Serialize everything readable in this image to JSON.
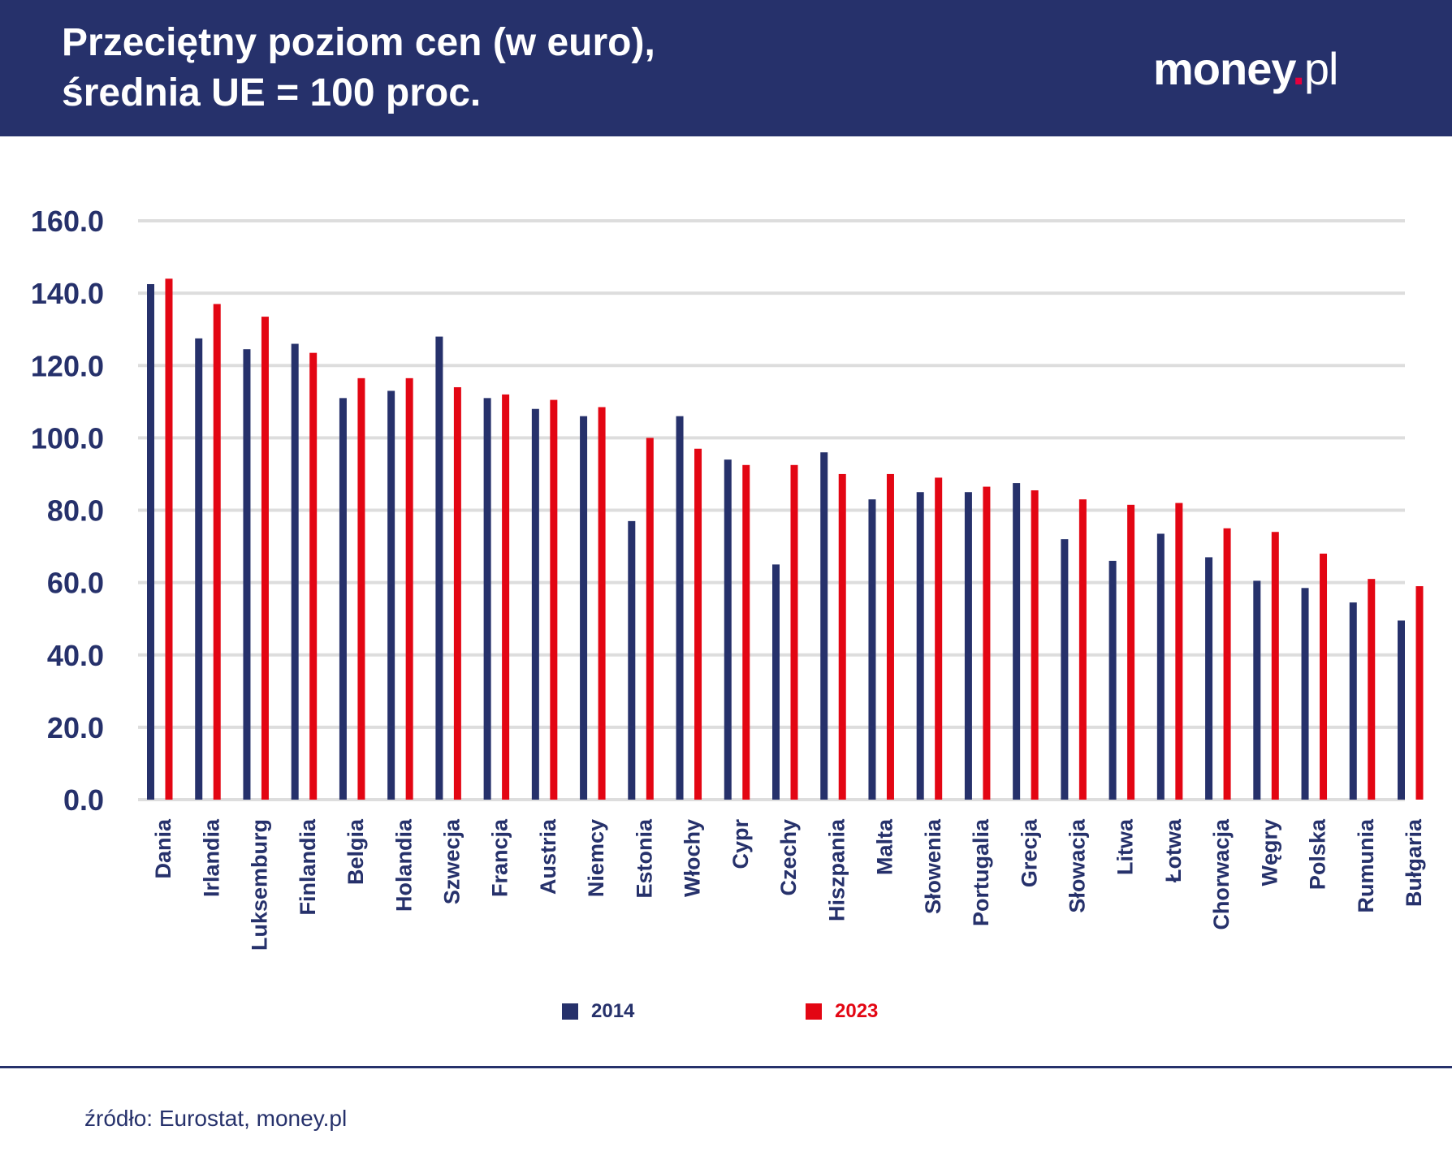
{
  "header": {
    "title_line1": "Przeciętny poziom cen (w euro),",
    "title_line2": "średnia UE = 100 proc.",
    "logo_main": "money",
    "logo_dot": ".",
    "logo_suffix": "pl"
  },
  "colors": {
    "header_bg": "#26316b",
    "series_2014": "#26316b",
    "series_2023": "#e30613",
    "text": "#26316b",
    "grid": "#dddddd",
    "logo_dot": "#e5003d"
  },
  "chart_data": {
    "type": "bar",
    "categories": [
      "Dania",
      "Irlandia",
      "Luksemburg",
      "Finlandia",
      "Belgia",
      "Holandia",
      "Szwecja",
      "Francja",
      "Austria",
      "Niemcy",
      "Estonia",
      "Włochy",
      "Cypr",
      "Czechy",
      "Hiszpania",
      "Malta",
      "Słowenia",
      "Portugalia",
      "Grecja",
      "Słowacja",
      "Litwa",
      "Łotwa",
      "Chorwacja",
      "Węgry",
      "Polska",
      "Rumunia",
      "Bułgaria"
    ],
    "series": [
      {
        "name": "2014",
        "values": [
          142.5,
          127.5,
          124.5,
          126,
          111,
          113,
          128,
          111,
          108,
          106,
          77,
          106,
          94,
          65,
          96,
          83,
          85,
          85,
          87.5,
          72,
          66,
          73.5,
          67,
          60.5,
          58.5,
          54.5,
          49.5
        ]
      },
      {
        "name": "2023",
        "values": [
          144,
          137,
          133.5,
          123.5,
          116.5,
          116.5,
          114,
          112,
          110.5,
          108.5,
          100,
          97,
          92.5,
          92.5,
          90,
          90,
          89,
          86.5,
          85.5,
          83,
          81.5,
          82,
          75,
          74,
          68,
          61,
          59
        ]
      }
    ],
    "y_ticks": [
      "0.0",
      "20.0",
      "40.0",
      "60.0",
      "80.0",
      "100.0",
      "120.0",
      "140.0",
      "160.0"
    ],
    "ylim": [
      0,
      160
    ],
    "grid": true,
    "legend": "bottom-center",
    "title": "Przeciętny poziom cen (w euro), średnia UE = 100 proc.",
    "xlabel": "",
    "ylabel": ""
  },
  "legend": {
    "items": [
      {
        "label": "2014",
        "color": "#26316b"
      },
      {
        "label": "2023",
        "color": "#e30613"
      }
    ]
  },
  "source": "źródło: Eurostat, money.pl"
}
